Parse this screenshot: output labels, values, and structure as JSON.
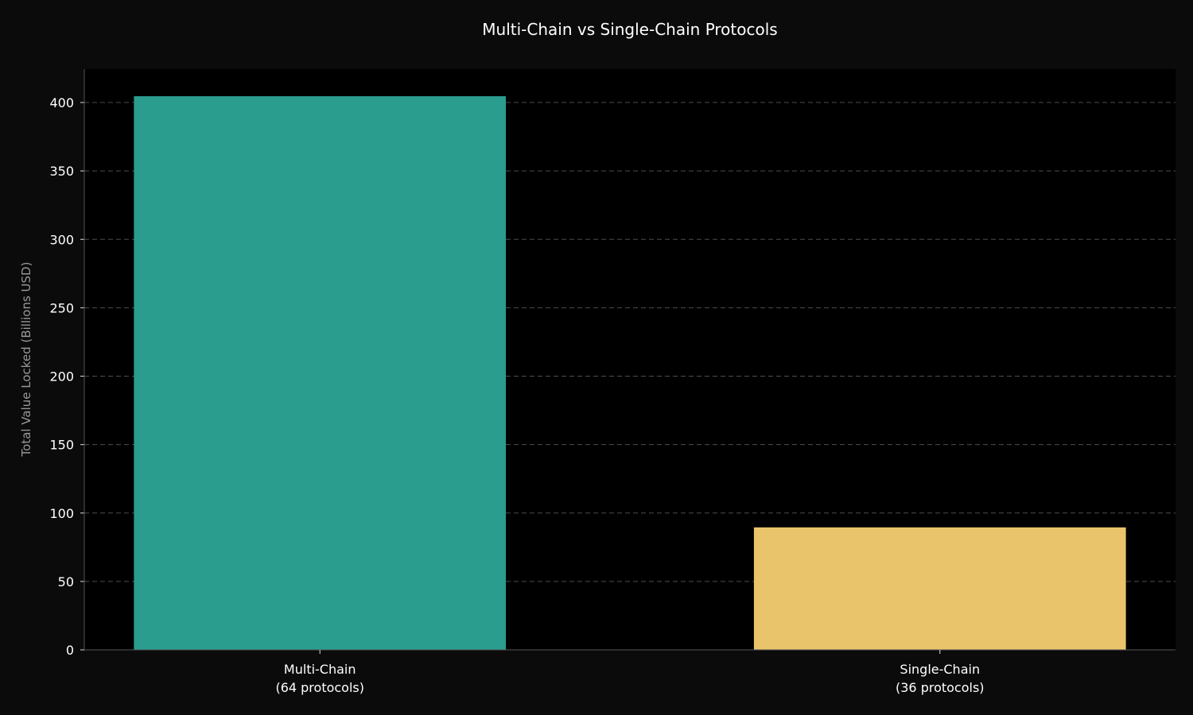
{
  "chart_data": {
    "type": "bar",
    "title": "Multi-Chain vs Single-Chain Protocols",
    "xlabel": "",
    "ylabel": "Total Value Locked (Billions USD)",
    "categories": [
      "Multi-Chain\n(64 protocols)",
      "Single-Chain\n(36 protocols)"
    ],
    "values": [
      404.6,
      89.5
    ],
    "colors": [
      "#2a9d8f",
      "#e9c46a"
    ],
    "ylim": [
      0,
      424.4
    ],
    "yticks": [
      0,
      50,
      100,
      150,
      200,
      250,
      300,
      350,
      400
    ],
    "grid": "y-dashed",
    "background": "#000000",
    "figure_background": "#0b0b0b"
  }
}
